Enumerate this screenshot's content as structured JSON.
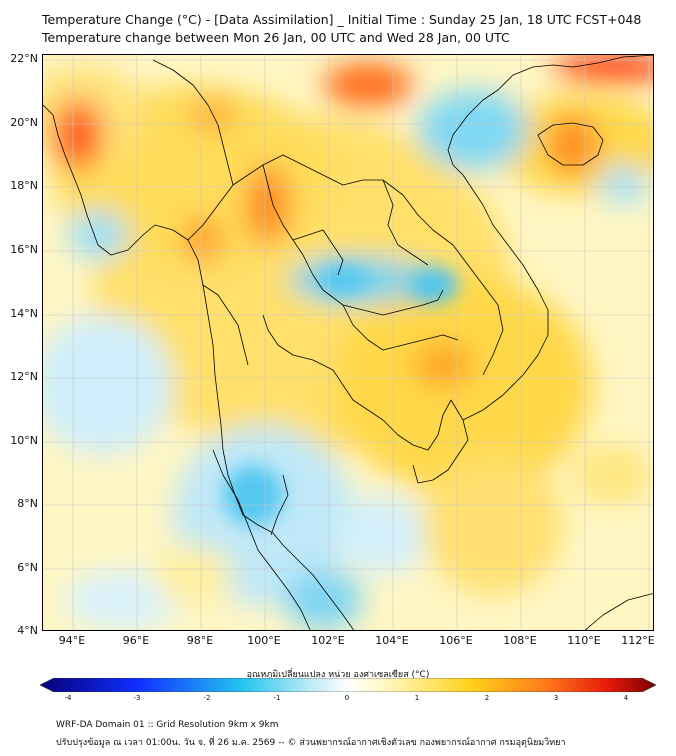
{
  "title_line1": "Temperature Change (°C) - [Data Assimilation] _ Initial Time : Sunday 25 Jan, 18 UTC FCST+048",
  "title_line2": "Temperature change between Mon 26 Jan, 00 UTC and Wed 28 Jan, 00 UTC",
  "lat_labels": [
    "22°N",
    "20°N",
    "18°N",
    "16°N",
    "14°N",
    "12°N",
    "10°N",
    "8°N",
    "6°N",
    "4°N"
  ],
  "lon_labels": [
    "94°E",
    "96°E",
    "98°E",
    "100°E",
    "102°E",
    "104°E",
    "106°E",
    "108°E",
    "110°E",
    "112°E"
  ],
  "colorbar": {
    "label": "อุณหภูมิเปลี่ยนแปลง หน่วย องศาเซลเซียส (°C)",
    "ticks": [
      "-4",
      "-3",
      "-2",
      "-1",
      "0",
      "1",
      "2",
      "3",
      "4"
    ],
    "min": -4,
    "max": 4,
    "colors": {
      "cold_extreme": "#08007a",
      "cold_strong": "#1030ff",
      "cold": "#25c6f0",
      "cool_light": "#bfeaf7",
      "neutral": "#ffffff",
      "warm_light": "#fff4a8",
      "warm": "#ffd11a",
      "hot": "#ff7a1a",
      "hot_strong": "#e81a0a",
      "hot_extreme": "#7a0000"
    }
  },
  "footer_line1": "WRF-DA Domain 01 :: Grid Resolution 9km x 9km",
  "footer_line2": "ปรับปรุงข้อมูล ณ เวลา 01:00น. วัน จ. ที่ 26 ม.ค. 2569 -- © ส่วนพยากรณ์อากาศเชิงตัวเลข กองพยากรณ์อากาศ กรมอุตุนิยมวิทยา"
}
